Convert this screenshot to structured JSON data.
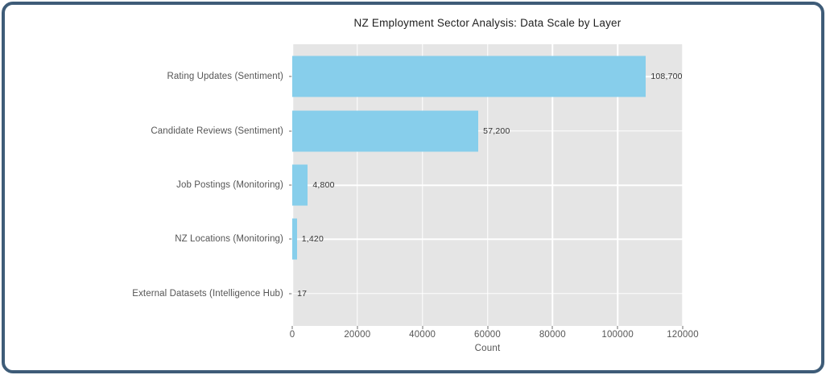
{
  "frame": {
    "border_color": "#3E5C78"
  },
  "chart_data": {
    "type": "bar",
    "orientation": "horizontal",
    "title": "NZ Employment Sector Analysis: Data Scale by Layer",
    "xlabel": "Count",
    "ylabel": "",
    "categories": [
      "Rating Updates (Sentiment)",
      "Candidate Reviews (Sentiment)",
      "Job Postings (Monitoring)",
      "NZ Locations (Monitoring)",
      "External Datasets (Intelligence Hub)"
    ],
    "values": [
      108700,
      57200,
      4800,
      1420,
      17
    ],
    "value_labels": [
      "108,700",
      "57,200",
      "4,800",
      "1,420",
      "17"
    ],
    "xlim": [
      0,
      120000
    ],
    "xticks": [
      0,
      20000,
      40000,
      60000,
      80000,
      100000,
      120000
    ],
    "xtick_labels": [
      "0",
      "20000",
      "40000",
      "60000",
      "80000",
      "100000",
      "120000"
    ],
    "grid": true,
    "legend": false,
    "colors": {
      "bar": "#87CEEB",
      "plot_background": "#E5E5E5",
      "gridline": "#FFFFFF",
      "tick_text": "#555555",
      "value_text": "#333333",
      "title_text": "#212121",
      "figure_background": "#FFFFFF"
    }
  }
}
